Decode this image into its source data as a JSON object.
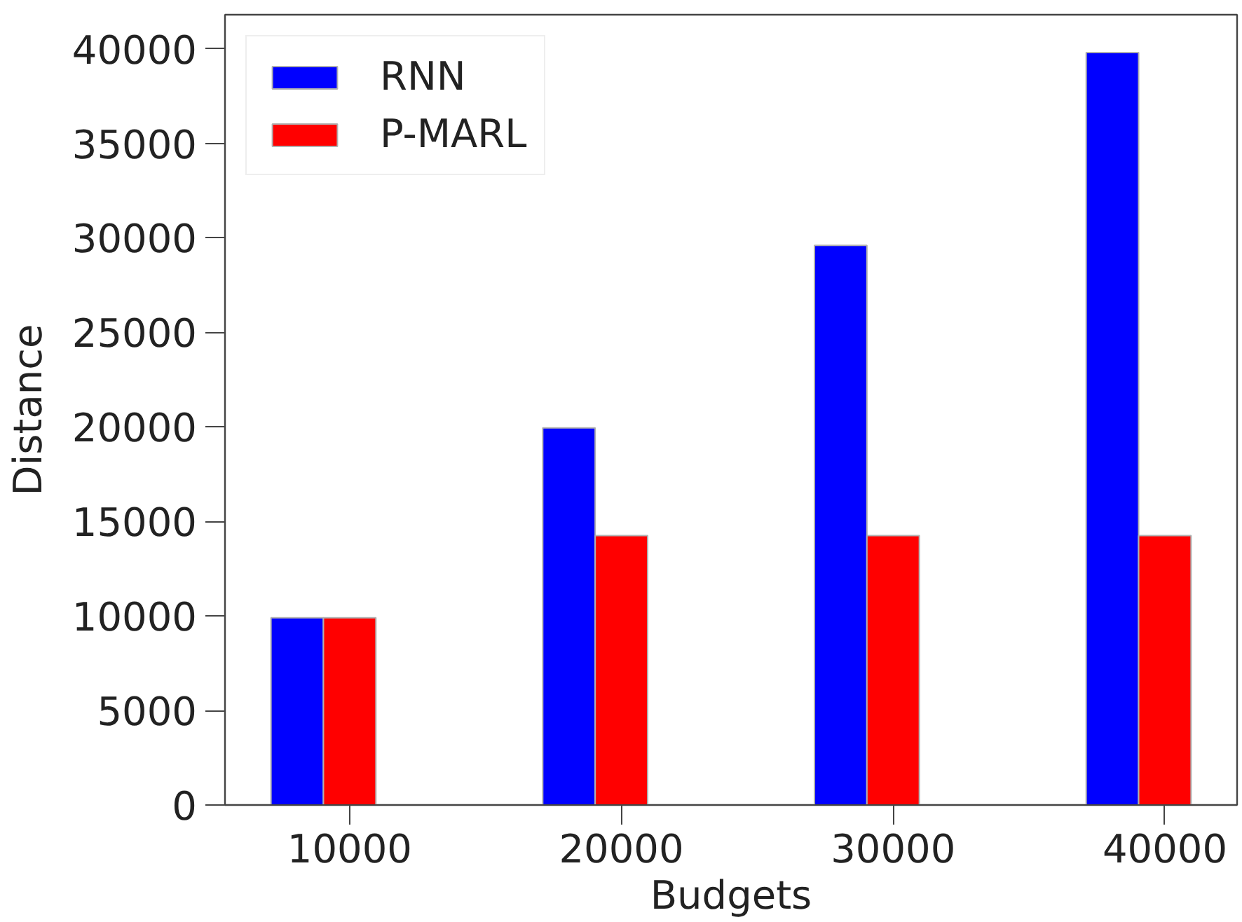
{
  "chart_data": {
    "type": "bar",
    "xlabel": "Budgets",
    "ylabel": "Distance",
    "categories": [
      "10000",
      "20000",
      "30000",
      "40000"
    ],
    "series": [
      {
        "name": "RNN",
        "color": "#0000ff",
        "values": [
          9900,
          19950,
          29600,
          39800
        ]
      },
      {
        "name": "P-MARL",
        "color": "#ff0000",
        "values": [
          9900,
          14250,
          14250,
          14250
        ]
      }
    ],
    "ylim": [
      0,
      41800
    ],
    "yticks": [
      0,
      5000,
      10000,
      15000,
      20000,
      25000,
      30000,
      35000,
      40000
    ],
    "grid": false,
    "legend": "top left"
  }
}
